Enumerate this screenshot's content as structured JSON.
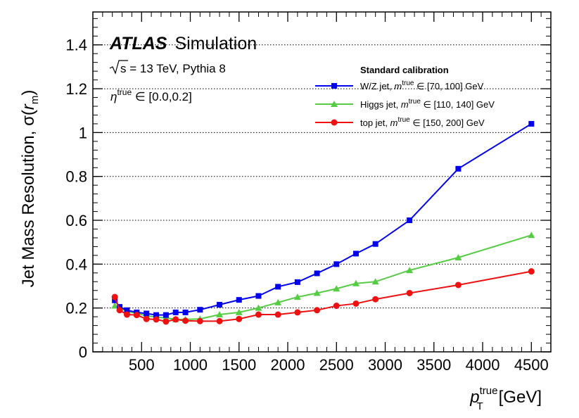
{
  "chart_data": {
    "type": "line",
    "title": "",
    "xlabel": "p_T^true [GeV]",
    "xlabel_parts": {
      "var": "p",
      "sup": "true",
      "sub": "T",
      "unit": "[GeV]"
    },
    "ylabel": "Jet Mass Resolution, σ(r_m)",
    "ylabel_parts": {
      "main": "Jet Mass Resolution, σ(",
      "r": "r",
      "sub": "m",
      "close": ")"
    },
    "xlim": [
      0,
      4700
    ],
    "ylim": [
      0,
      1.55
    ],
    "xticks": [
      500,
      1000,
      1500,
      2000,
      2500,
      3000,
      3500,
      4000,
      4500
    ],
    "xtick_labels": [
      "500",
      "1000",
      "1500",
      "2000",
      "2500",
      "3000",
      "3500",
      "4000",
      "4500"
    ],
    "yticks": [
      0,
      0.2,
      0.4,
      0.6,
      0.8,
      1,
      1.2,
      1.4
    ],
    "ytick_labels": [
      "0",
      "0.2",
      "0.4",
      "0.6",
      "0.8",
      "1",
      "1.2",
      "1.4"
    ],
    "grid": "horizontal dotted",
    "annotations": {
      "atlas": "ATLAS",
      "simulation": "Simulation",
      "sqrt_s": "s",
      "energy": " = 13 TeV, Pythia 8",
      "eta_symbol": "η",
      "eta_sup": "true",
      "eta_range": " ∈ [0.0,0.2]"
    },
    "legend": {
      "title": "Standard calibration",
      "position": "top-right"
    },
    "series": [
      {
        "name": "W/Z jet, m^true ∈ [70, 100] GeV",
        "label_prefix": "W/Z jet, ",
        "label_suffix": " ∈ [70, 100] GeV",
        "color": "#0000ee",
        "marker": "square",
        "x": [
          225,
          275,
          350,
          450,
          550,
          650,
          750,
          850,
          950,
          1100,
          1300,
          1500,
          1700,
          1900,
          2100,
          2300,
          2500,
          2700,
          2900,
          3250,
          3750,
          4500
        ],
        "y": [
          0.235,
          0.205,
          0.19,
          0.18,
          0.175,
          0.168,
          0.168,
          0.18,
          0.18,
          0.192,
          0.215,
          0.237,
          0.255,
          0.297,
          0.318,
          0.358,
          0.4,
          0.448,
          0.492,
          0.6,
          0.835,
          1.04
        ]
      },
      {
        "name": "Higgs jet, m^true ∈ [110, 140] GeV",
        "label_prefix": "Higgs jet, ",
        "label_suffix": " ∈ [110, 140] GeV",
        "color": "#55cc44",
        "marker": "triangle",
        "x": [
          225,
          275,
          350,
          450,
          550,
          650,
          750,
          850,
          950,
          1100,
          1300,
          1500,
          1700,
          1900,
          2100,
          2300,
          2500,
          2700,
          2900,
          3250,
          3750,
          4500
        ],
        "y": [
          0.21,
          0.2,
          0.185,
          0.175,
          0.165,
          0.158,
          0.155,
          0.148,
          0.148,
          0.15,
          0.17,
          0.18,
          0.2,
          0.225,
          0.25,
          0.268,
          0.288,
          0.312,
          0.32,
          0.372,
          0.43,
          0.532
        ]
      },
      {
        "name": "top jet, m^true ∈ [150, 200] GeV",
        "label_prefix": "top jet, ",
        "label_suffix": " ∈ [150, 200] GeV",
        "color": "#ee1111",
        "marker": "circle",
        "x": [
          225,
          275,
          350,
          450,
          550,
          650,
          750,
          850,
          950,
          1100,
          1300,
          1500,
          1700,
          1900,
          2100,
          2300,
          2500,
          2700,
          2900,
          3250,
          3750,
          4500
        ],
        "y": [
          0.25,
          0.19,
          0.17,
          0.168,
          0.15,
          0.148,
          0.138,
          0.148,
          0.142,
          0.14,
          0.14,
          0.15,
          0.17,
          0.17,
          0.18,
          0.19,
          0.21,
          0.22,
          0.24,
          0.268,
          0.305,
          0.367
        ]
      }
    ]
  }
}
